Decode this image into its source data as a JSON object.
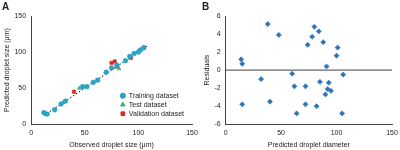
{
  "chart_data": [
    {
      "type": "scatter",
      "title": "A",
      "x_label": "Observed droplet size (µm)",
      "y_label": "Predicted droplet size (µm)",
      "xlim": [
        0,
        150
      ],
      "ylim": [
        0,
        150
      ],
      "xticks": [
        0,
        50,
        100,
        150
      ],
      "yticks": [
        0,
        50,
        100,
        150
      ],
      "grid": false,
      "legend": "lower right",
      "series": [
        {
          "name": "Training dataset",
          "color": "#29a3c6",
          "marker": "circle",
          "x": [
            12,
            15,
            22,
            28,
            32,
            48,
            52,
            58,
            62,
            70,
            75,
            80,
            88,
            92,
            96,
            100,
            102,
            105
          ],
          "values": [
            16,
            14,
            20,
            28,
            32,
            52,
            52,
            58,
            61,
            72,
            78,
            82,
            88,
            94,
            98,
            100,
            103,
            106
          ]
        },
        {
          "name": "Test dataset",
          "color": "#3cb371",
          "marker": "triangle",
          "x": [
            30,
            45,
            82,
            100
          ],
          "values": [
            30,
            50,
            77,
            101
          ]
        },
        {
          "name": "Validation dataset",
          "color": "#d62728",
          "marker": "square",
          "x": [
            40,
            75,
            78,
            80,
            93,
            105
          ],
          "values": [
            45,
            85,
            87,
            80,
            92,
            106
          ]
        },
        {
          "type": "line",
          "line_style": "dotted",
          "color": "#000000",
          "x": [
            12,
            108
          ],
          "values": [
            12,
            108
          ]
        }
      ]
    },
    {
      "type": "scatter",
      "title": "B",
      "x_label": "Predicted droplet diameter",
      "y_label": "Residuals",
      "xlim": [
        0,
        150
      ],
      "ylim": [
        -6,
        6
      ],
      "xticks": [
        0,
        50,
        100,
        150
      ],
      "yticks": [
        -6,
        -4,
        -2,
        0,
        2,
        4,
        6
      ],
      "grid": false,
      "series": [
        {
          "color": "#2e75b6",
          "marker": "diamond",
          "x": [
            14,
            15,
            15,
            32,
            38,
            40,
            48,
            60,
            62,
            64,
            72,
            72,
            74,
            78,
            80,
            82,
            84,
            85,
            88,
            90,
            91,
            92,
            93,
            95,
            100,
            101,
            105,
            106
          ],
          "values": [
            1.2,
            -3.8,
            0.7,
            -1,
            5.1,
            -3.5,
            3.9,
            -0.4,
            -1.8,
            -4.8,
            -3.8,
            -1.8,
            2.8,
            3.7,
            4.8,
            -4,
            4.3,
            -1.3,
            3.1,
            -2.7,
            0.4,
            -2.1,
            -1.4,
            -2.3,
            1.6,
            2.5,
            -4.8,
            -0.5
          ]
        }
      ]
    }
  ]
}
